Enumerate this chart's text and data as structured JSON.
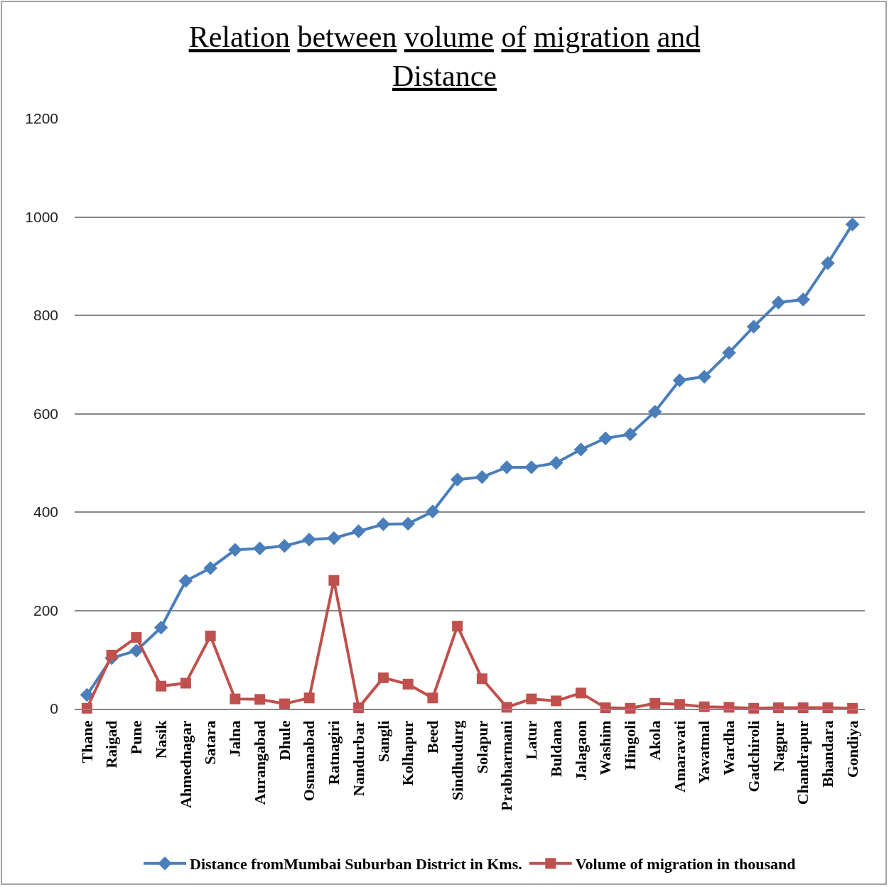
{
  "chart_data": {
    "type": "line",
    "title": "Relation between volume of migration and Distance",
    "categories": [
      "Thane",
      "Raigad",
      "Pune",
      "Nasik",
      "Ahmednagar",
      "Satara",
      "Jalna",
      "Aurangabad",
      "Dhule",
      "Osmanabad",
      "Ratnagiri",
      "Nandurbar",
      "Sangli",
      "Kolhapur",
      "Beed",
      "Sindhudurg",
      "Solapur",
      "Prabharmani",
      "Latur",
      "Buldana",
      "Jalagaon",
      "Washim",
      "Hingoli",
      "Akola",
      "Amaravati",
      "Yavatmal",
      "Wardha",
      "Gadchiroli",
      "Nagpur",
      "Chandrapur",
      "Bhandara",
      "Gondiya"
    ],
    "series": [
      {
        "name": "Distance fromMumbai Suburban District in Kms.",
        "color": "#4a7ebb",
        "marker": "diamond",
        "values": [
          28,
          103,
          118,
          165,
          260,
          286,
          323,
          326,
          331,
          344,
          347,
          361,
          375,
          376,
          401,
          466,
          471,
          491,
          491,
          500,
          527,
          550,
          558,
          604,
          668,
          675,
          724,
          777,
          826,
          832,
          906,
          985
        ]
      },
      {
        "name": "Volume of migration in thousand",
        "color": "#c0504d",
        "marker": "square",
        "values": [
          1,
          109,
          145,
          46,
          52,
          148,
          20,
          19,
          10,
          22,
          261,
          2,
          63,
          50,
          22,
          168,
          61,
          3,
          20,
          16,
          32,
          2,
          1,
          11,
          9,
          4,
          3,
          1,
          2,
          2,
          2,
          1
        ]
      }
    ],
    "ylim": [
      0,
      1200
    ],
    "yticks": [
      0,
      200,
      400,
      600,
      800,
      1000,
      1200
    ],
    "grid": "y",
    "legend": "bottom",
    "line_style": "solid"
  }
}
